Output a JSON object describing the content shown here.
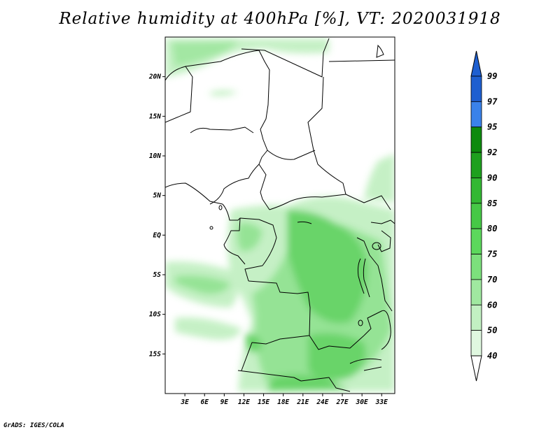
{
  "title": "Relative humidity at 400hPa [%], VT: 2020031918",
  "credit": "GrADS: IGES/COLA",
  "map": {
    "lon_range": [
      0,
      35
    ],
    "lat_range": [
      -20,
      25
    ],
    "lon_ticks": [
      "3E",
      "6E",
      "9E",
      "12E",
      "15E",
      "18E",
      "21E",
      "24E",
      "27E",
      "30E",
      "33E"
    ],
    "lon_values": [
      3,
      6,
      9,
      12,
      15,
      18,
      21,
      24,
      27,
      30,
      33
    ],
    "lat_ticks": [
      "20N",
      "15N",
      "10N",
      "5N",
      "EQ",
      "5S",
      "10S",
      "15S"
    ],
    "lat_values": [
      20,
      15,
      10,
      5,
      0,
      -5,
      -10,
      -15
    ]
  },
  "colorbar": {
    "levels": [
      "99",
      "97",
      "95",
      "92",
      "90",
      "85",
      "80",
      "75",
      "70",
      "60",
      "50",
      "40"
    ],
    "colors": [
      "#1e5fd0",
      "#3a82ea",
      "#0d8a0d",
      "#1ea01e",
      "#33b833",
      "#46c846",
      "#5cd85c",
      "#7ce07c",
      "#a0e8a0",
      "#c2f0c2",
      "#e0f8e0"
    ],
    "top_triangle_color": "#1e5fd0",
    "bottom_triangle_color": "#ffffff"
  }
}
